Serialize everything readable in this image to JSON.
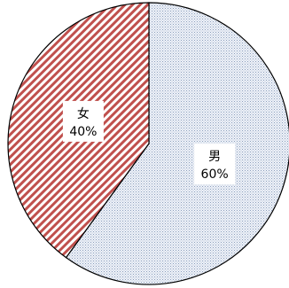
{
  "chart_data": {
    "type": "pie",
    "categories": [
      "男",
      "女"
    ],
    "values": [
      60,
      40
    ],
    "value_labels": [
      "60%",
      "40%"
    ],
    "start_angle_deg": 0,
    "direction": "clockwise",
    "legend": "none",
    "slices": [
      {
        "name": "男",
        "value": 60,
        "value_label": "60%",
        "fill": "#c4cfe0",
        "pattern": "dotted"
      },
      {
        "name": "女",
        "value": 40,
        "value_label": "40%",
        "fill": "#c0504d",
        "pattern": "diagonal-stripes"
      }
    ]
  }
}
